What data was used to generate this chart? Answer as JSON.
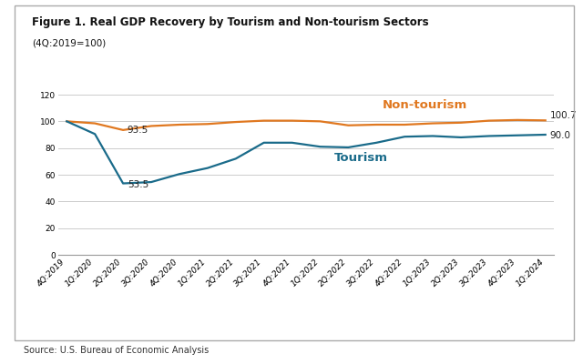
{
  "title_line1": "Figure 1. Real GDP Recovery by Tourism and Non-tourism Sectors",
  "title_line2": "(4Q:2019=100)",
  "source": "Source: U.S. Bureau of Economic Analysis",
  "x_labels": [
    "4Q:2019",
    "1Q:2020",
    "2Q:2020",
    "3Q:2020",
    "4Q:2020",
    "1Q:2021",
    "2Q:2021",
    "3Q:2021",
    "4Q:2021",
    "1Q:2022",
    "2Q:2022",
    "3Q:2022",
    "4Q:2022",
    "1Q:2023",
    "2Q:2023",
    "3Q:2023",
    "4Q:2023",
    "1Q:2024"
  ],
  "tourism": [
    100.0,
    90.5,
    53.5,
    54.5,
    60.5,
    65.0,
    72.0,
    84.0,
    84.0,
    81.0,
    80.5,
    84.0,
    88.5,
    89.0,
    88.0,
    89.0,
    89.5,
    90.0
  ],
  "non_tourism": [
    100.0,
    98.5,
    93.5,
    96.5,
    97.5,
    98.0,
    99.5,
    100.5,
    100.5,
    100.0,
    97.0,
    97.5,
    97.5,
    98.5,
    99.0,
    100.5,
    101.0,
    100.7
  ],
  "tourism_color": "#1a6b8a",
  "non_tourism_color": "#e07820",
  "ylim": [
    0,
    120
  ],
  "yticks": [
    0,
    20,
    40,
    60,
    80,
    100,
    120
  ],
  "grid_color": "#cccccc",
  "background_color": "#ffffff",
  "border_color": "#aaaaaa",
  "title_fontsize": 8.5,
  "subtitle_fontsize": 7.5,
  "label_fontsize": 9.5,
  "annot_fontsize": 7.5,
  "source_fontsize": 7.0,
  "tick_fontsize": 6.5
}
